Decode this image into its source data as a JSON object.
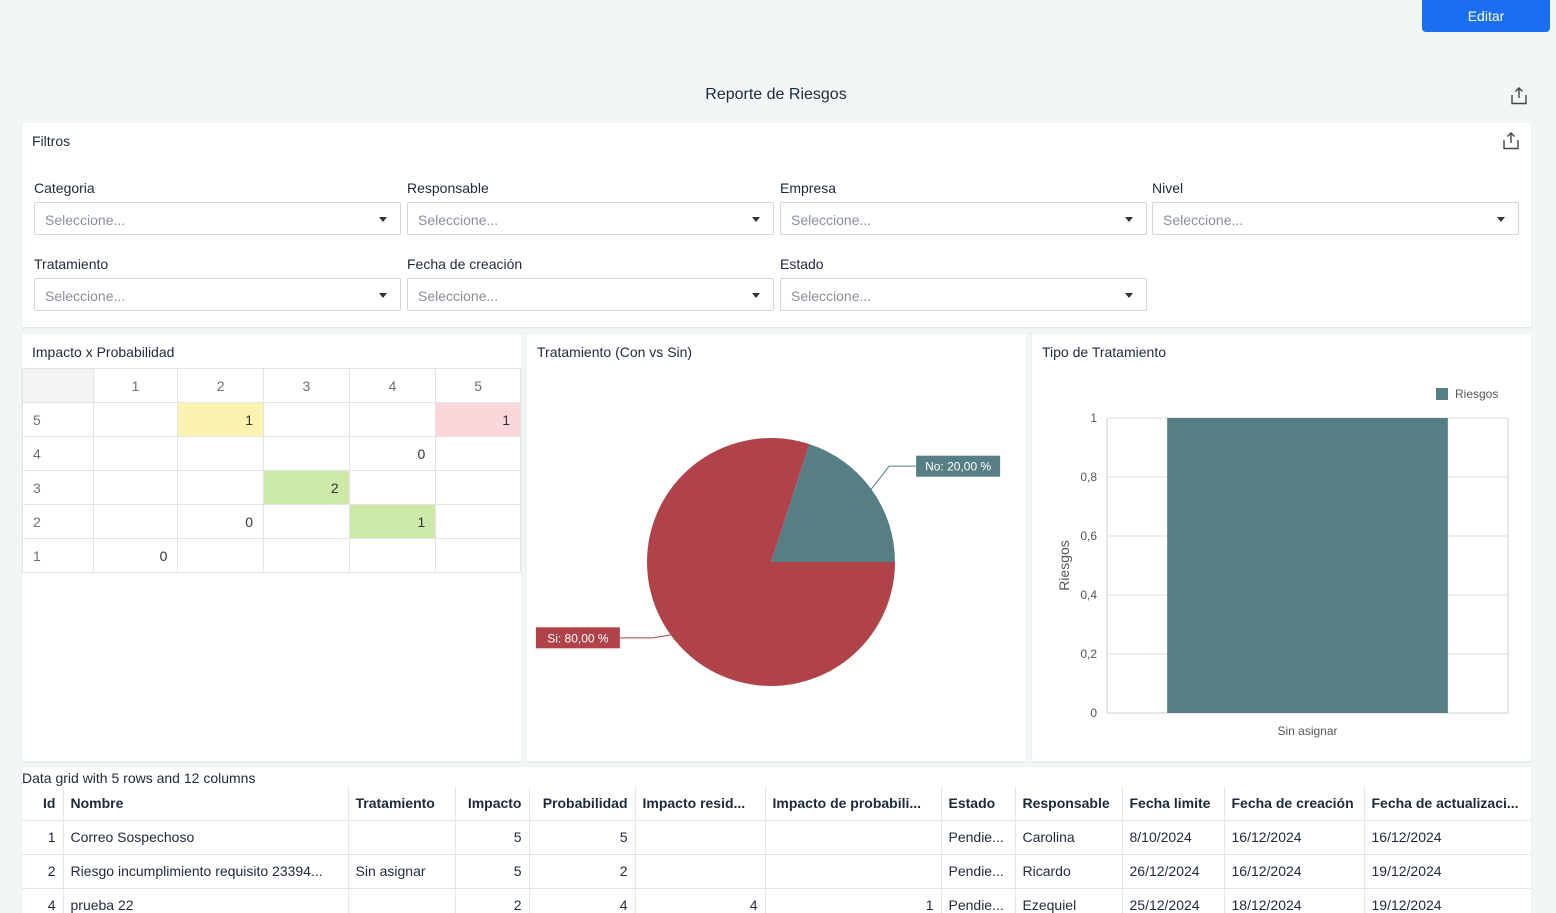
{
  "toolbar": {
    "edit_label": "Editar"
  },
  "report": {
    "title": "Reporte de Riesgos"
  },
  "filters": {
    "title": "Filtros",
    "items": [
      {
        "label": "Categoria",
        "placeholder": "Seleccione..."
      },
      {
        "label": "Responsable",
        "placeholder": "Seleccione..."
      },
      {
        "label": "Empresa",
        "placeholder": "Seleccione..."
      },
      {
        "label": "Nivel",
        "placeholder": "Seleccione..."
      },
      {
        "label": "Tratamiento",
        "placeholder": "Seleccione..."
      },
      {
        "label": "Fecha de creación",
        "placeholder": "Seleccione..."
      },
      {
        "label": "Estado",
        "placeholder": "Seleccione..."
      }
    ]
  },
  "matrix": {
    "title": "Impacto x Probabilidad",
    "columns": [
      "1",
      "2",
      "3",
      "4",
      "5"
    ],
    "rows": [
      {
        "label": "5",
        "cells": [
          "",
          "1",
          "",
          "",
          "1"
        ]
      },
      {
        "label": "4",
        "cells": [
          "",
          "",
          "",
          "0",
          ""
        ]
      },
      {
        "label": "3",
        "cells": [
          "",
          "",
          "2",
          "",
          ""
        ]
      },
      {
        "label": "2",
        "cells": [
          "",
          "0",
          "",
          "1",
          ""
        ]
      },
      {
        "label": "1",
        "cells": [
          "0",
          "",
          "",
          "",
          ""
        ]
      }
    ],
    "colors": {
      "yellow": "#fdf3b0",
      "pink": "#fbd7dc",
      "green": "#cdeaa8"
    }
  },
  "chart_data": [
    {
      "type": "pie",
      "title": "Tratamiento (Con vs Sin)",
      "slices": [
        {
          "label": "No: 20,00 %",
          "value": 20,
          "color": "#557f85"
        },
        {
          "label": "Si: 80,00 %",
          "value": 80,
          "color": "#b04249"
        }
      ]
    },
    {
      "type": "bar",
      "title": "Tipo de Tratamiento",
      "categories": [
        "Sin asignar"
      ],
      "series": [
        {
          "name": "Riesgos",
          "values": [
            1
          ],
          "color": "#557f85"
        }
      ],
      "ylabel": "Riesgos",
      "ylim": [
        0,
        1
      ],
      "yticks": [
        "0",
        "0,2",
        "0,4",
        "0,6",
        "0,8",
        "1"
      ],
      "grid": true,
      "legend": "top-right"
    }
  ],
  "grid": {
    "caption": "Data grid with 5 rows and 12 columns",
    "columns": [
      "Id",
      "Nombre",
      "Tratamiento",
      "Impacto",
      "Probabilidad",
      "Impacto resid...",
      "Impacto de probabili...",
      "Estado",
      "Responsable",
      "Fecha limite",
      "Fecha de creación",
      "Fecha de actualizaci..."
    ],
    "rows": [
      [
        "1",
        "Correo Sospechoso",
        "",
        "5",
        "5",
        "",
        "",
        "Pendie...",
        "Carolina",
        "8/10/2024",
        "16/12/2024",
        "16/12/2024"
      ],
      [
        "2",
        "Riesgo incumplimiento requisito 23394...",
        "Sin asignar",
        "5",
        "2",
        "",
        "",
        "Pendie...",
        "Ricardo",
        "26/12/2024",
        "16/12/2024",
        "19/12/2024"
      ],
      [
        "4",
        "prueba 22",
        "",
        "2",
        "4",
        "4",
        "1",
        "Pendie...",
        "Ezequiel",
        "25/12/2024",
        "18/12/2024",
        "19/12/2024"
      ]
    ]
  }
}
